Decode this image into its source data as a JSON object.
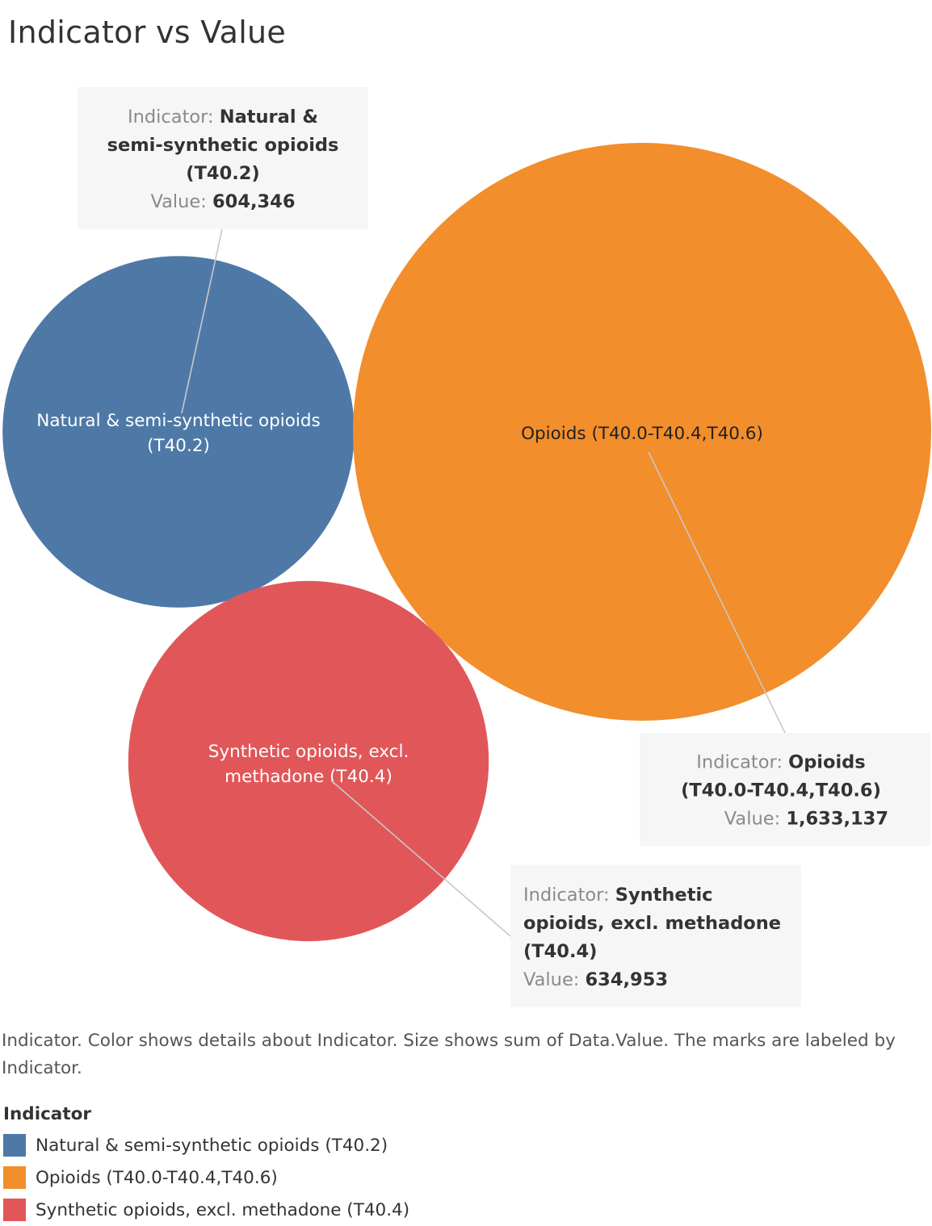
{
  "title": "Indicator vs Value",
  "chart_data": {
    "type": "bubble",
    "series": [
      {
        "name": "Natural & semi-synthetic opioids (T40.2)",
        "value": 604346,
        "value_label": "604,346",
        "color": "#4E79A7",
        "mark_label_lines": [
          "Natural & semi-synthetic opioids",
          "(T40.2)"
        ],
        "tooltip_indicator_lines": [
          "Natural &",
          "semi-synthetic opioids",
          "(T40.2)"
        ]
      },
      {
        "name": "Opioids (T40.0-T40.4,T40.6)",
        "value": 1633137,
        "value_label": "1,633,137",
        "color": "#F28E2B",
        "mark_label_lines": [
          "Opioids (T40.0-T40.4,T40.6)"
        ],
        "tooltip_indicator_lines": [
          "Opioids",
          "(T40.0-T40.4,T40.6)"
        ]
      },
      {
        "name": "Synthetic opioids, excl. methadone (T40.4)",
        "value": 634953,
        "value_label": "634,953",
        "color": "#E15759",
        "mark_label_lines": [
          "Synthetic opioids, excl.",
          "methadone (T40.4)"
        ],
        "tooltip_indicator_lines": [
          "Synthetic",
          "opioids, excl. methadone",
          "(T40.4)"
        ]
      }
    ],
    "tooltip_indicator_prefix": "Indicator:",
    "tooltip_value_prefix": "Value:"
  },
  "caption": "Indicator.  Color shows details about Indicator.  Size shows sum of Data.Value.  The marks are labeled by Indicator.",
  "legend": {
    "title": "Indicator",
    "items": [
      {
        "label": "Natural & semi-synthetic opioids (T40.2)",
        "color": "#4E79A7"
      },
      {
        "label": "Opioids (T40.0-T40.4,T40.6)",
        "color": "#F28E2B"
      },
      {
        "label": "Synthetic opioids, excl. methadone (T40.4)",
        "color": "#E15759"
      }
    ]
  }
}
